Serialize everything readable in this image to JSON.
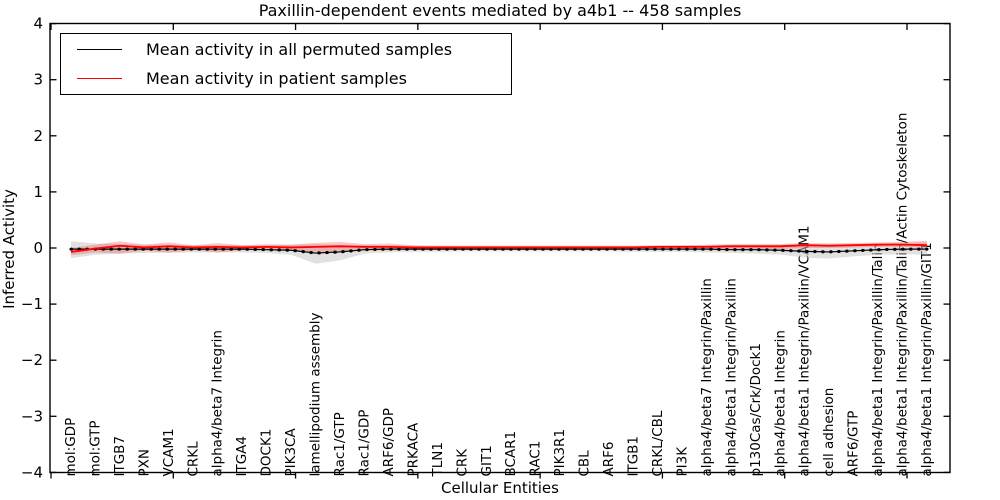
{
  "figure": {
    "background": "#ffffff"
  },
  "chart_data": {
    "type": "line",
    "title": "Paxillin-dependent events mediated by a4b1 -- 458 samples",
    "xlabel": "Cellular Entities",
    "ylabel": "Inferred Activity",
    "ylim": [
      -4,
      4
    ],
    "yticks": [
      4,
      3,
      2,
      1,
      0,
      -1,
      -2,
      -3,
      -4
    ],
    "grid": false,
    "legend_position": "upper left",
    "x_tick_label_rotation": 90,
    "x_tick_labels_inside_plot": true,
    "categories": [
      "mol:GDP",
      "mol:GTP",
      "ITGB7",
      "PXN",
      "VCAM1",
      "CRKL",
      "alpha4/beta7 Integrin",
      "ITGA4",
      "DOCK1",
      "PIK3CA",
      "lamellipodium assembly",
      "Rac1/GTP",
      "Rac1/GDP",
      "ARF6/GDP",
      "PRKACA",
      "TLN1",
      "CRK",
      "GIT1",
      "BCAR1",
      "RAC1",
      "PIK3R1",
      "CBL",
      "ARF6",
      "ITGB1",
      "CRKL/CBL",
      "PI3K",
      "alpha4/beta7 Integrin/Paxillin",
      "alpha4/beta1 Integrin/Paxillin",
      "p130Cas/Crk/Dock1",
      "alpha4/beta1 Integrin",
      "alpha4/beta1 Integrin/Paxillin/VCAM1",
      "cell adhesion",
      "ARF6/GTP",
      "alpha4/beta1 Integrin/Paxillin/Talin",
      "alpha4/beta1 Integrin/Paxillin/Talin/Actin Cytoskeleton",
      "alpha4/beta1 Integrin/Paxillin/GIT1"
    ],
    "series": [
      {
        "name": "Mean activity in all permuted samples",
        "color": "#000000",
        "band_color": "#c8c8c8",
        "values": [
          -0.02,
          -0.02,
          -0.02,
          -0.02,
          -0.02,
          -0.02,
          -0.02,
          -0.02,
          -0.03,
          -0.04,
          -0.09,
          -0.07,
          -0.03,
          -0.02,
          -0.02,
          -0.02,
          -0.02,
          -0.02,
          -0.02,
          -0.02,
          -0.02,
          -0.02,
          -0.02,
          -0.02,
          -0.02,
          -0.02,
          -0.02,
          -0.03,
          -0.03,
          -0.04,
          -0.06,
          -0.07,
          -0.05,
          -0.03,
          -0.02,
          -0.02
        ],
        "band_upper": [
          0.12,
          0.08,
          0.07,
          0.06,
          0.06,
          0.05,
          0.05,
          0.05,
          0.05,
          0.06,
          0.07,
          0.06,
          0.05,
          0.05,
          0.04,
          0.04,
          0.04,
          0.04,
          0.04,
          0.04,
          0.04,
          0.04,
          0.04,
          0.04,
          0.04,
          0.05,
          0.05,
          0.06,
          0.06,
          0.06,
          0.07,
          0.07,
          0.07,
          0.08,
          0.09,
          0.1
        ],
        "band_lower": [
          -0.18,
          -0.12,
          -0.1,
          -0.09,
          -0.09,
          -0.08,
          -0.08,
          -0.08,
          -0.09,
          -0.12,
          -0.28,
          -0.22,
          -0.1,
          -0.08,
          -0.07,
          -0.07,
          -0.06,
          -0.06,
          -0.06,
          -0.06,
          -0.06,
          -0.06,
          -0.06,
          -0.07,
          -0.07,
          -0.07,
          -0.08,
          -0.09,
          -0.1,
          -0.12,
          -0.17,
          -0.19,
          -0.15,
          -0.12,
          -0.11,
          -0.12
        ]
      },
      {
        "name": "Mean activity in patient samples",
        "color": "#ff0000",
        "band_color": "#ff0000",
        "values": [
          -0.07,
          -0.01,
          0.04,
          0.01,
          0.03,
          0.01,
          0.02,
          0.01,
          0.02,
          0.01,
          0.02,
          0.03,
          0.02,
          0.02,
          0.01,
          0.01,
          0.01,
          0.01,
          0.01,
          0.01,
          0.01,
          0.01,
          0.01,
          0.01,
          0.02,
          0.02,
          0.02,
          0.03,
          0.03,
          0.03,
          0.05,
          0.04,
          0.05,
          0.06,
          0.06,
          0.05
        ],
        "band_upper": [
          0.0,
          0.06,
          0.12,
          0.06,
          0.1,
          0.05,
          0.09,
          0.05,
          0.07,
          0.06,
          0.09,
          0.11,
          0.07,
          0.08,
          0.05,
          0.04,
          0.04,
          0.04,
          0.04,
          0.04,
          0.04,
          0.04,
          0.04,
          0.04,
          0.05,
          0.05,
          0.06,
          0.07,
          0.07,
          0.07,
          0.09,
          0.08,
          0.09,
          0.1,
          0.11,
          0.13
        ],
        "band_lower": [
          -0.13,
          -0.08,
          -0.1,
          -0.05,
          -0.08,
          -0.04,
          -0.08,
          -0.04,
          -0.04,
          -0.04,
          -0.07,
          -0.08,
          -0.04,
          -0.04,
          -0.03,
          -0.02,
          -0.02,
          -0.02,
          -0.02,
          -0.02,
          -0.02,
          -0.02,
          -0.02,
          -0.02,
          -0.02,
          -0.02,
          -0.02,
          -0.02,
          -0.02,
          -0.02,
          0.0,
          0.0,
          0.01,
          0.02,
          0.02,
          0.0
        ]
      }
    ]
  }
}
